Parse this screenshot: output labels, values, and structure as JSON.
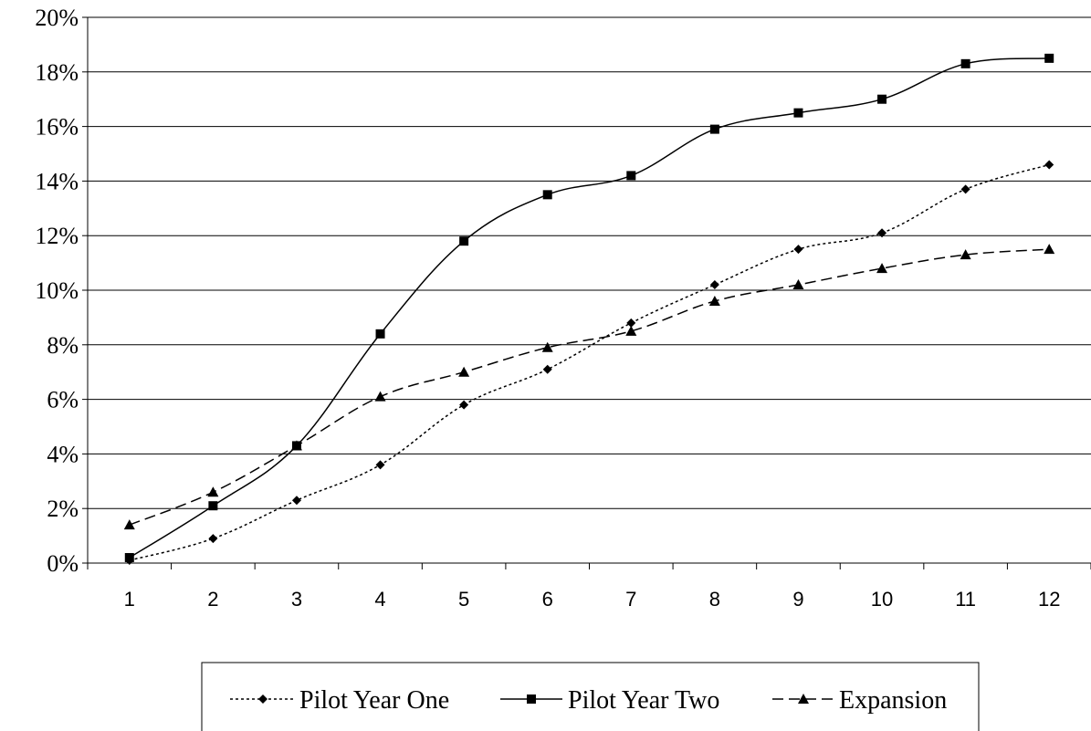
{
  "chart_data": {
    "type": "line",
    "title": "",
    "xlabel": "",
    "ylabel": "",
    "x": [
      1,
      2,
      3,
      4,
      5,
      6,
      7,
      8,
      9,
      10,
      11,
      12
    ],
    "x_tick_labels": [
      "1",
      "2",
      "3",
      "4",
      "5",
      "6",
      "7",
      "8",
      "9",
      "10",
      "11",
      "12"
    ],
    "ylim": [
      0,
      20
    ],
    "y_ticks": [
      0,
      2,
      4,
      6,
      8,
      10,
      12,
      14,
      16,
      18,
      20
    ],
    "y_tick_labels": [
      "0%",
      "2%",
      "4%",
      "6%",
      "8%",
      "10%",
      "12%",
      "14%",
      "16%",
      "18%",
      "20%"
    ],
    "y_unit": "%",
    "grid": "horizontal",
    "legend_position": "bottom",
    "series": [
      {
        "name": "Pilot Year One",
        "values": [
          0.1,
          0.9,
          2.3,
          3.6,
          5.8,
          7.1,
          8.8,
          10.2,
          11.5,
          12.1,
          13.7,
          14.6
        ],
        "line_style": "dotted",
        "marker": "diamond",
        "color": "#000000"
      },
      {
        "name": "Pilot Year Two",
        "values": [
          0.2,
          2.1,
          4.3,
          8.4,
          11.8,
          13.5,
          14.2,
          15.9,
          16.5,
          17.0,
          18.3,
          18.5
        ],
        "line_style": "solid",
        "marker": "square",
        "color": "#000000"
      },
      {
        "name": "Expansion",
        "values": [
          1.4,
          2.6,
          4.3,
          6.1,
          7.0,
          7.9,
          8.5,
          9.6,
          10.2,
          10.8,
          11.3,
          11.5
        ],
        "line_style": "dashed",
        "marker": "triangle",
        "color": "#000000"
      }
    ]
  }
}
